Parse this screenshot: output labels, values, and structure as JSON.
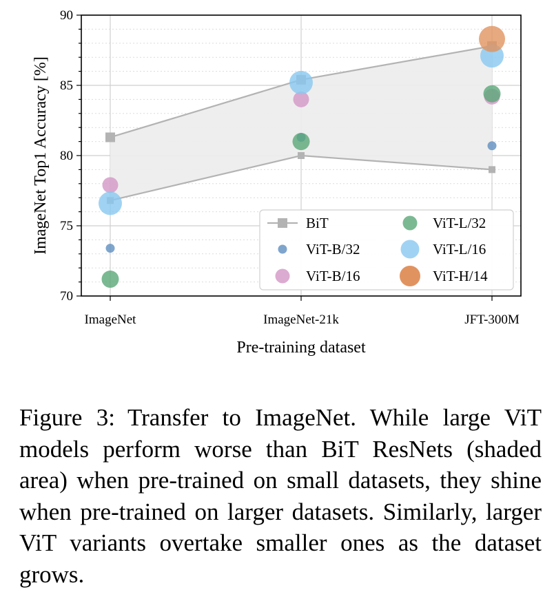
{
  "chart_data": {
    "type": "scatter",
    "title": "",
    "xlabel": "Pre-training dataset",
    "ylabel": "ImageNet Top1 Accuracy [%]",
    "categories": [
      "ImageNet",
      "ImageNet-21k",
      "JFT-300M"
    ],
    "ylim": [
      70,
      90
    ],
    "yticks": [
      70,
      75,
      80,
      85,
      90
    ],
    "grid": true,
    "legend_placement": "lower-right",
    "bit_range": {
      "name": "BiT",
      "upper": [
        81.3,
        85.4,
        87.8
      ],
      "lower": [
        76.8,
        80.0,
        79.0
      ],
      "color": "#b3b3b3",
      "fill": "#ececec"
    },
    "series": [
      {
        "name": "ViT-B/32",
        "values": [
          73.4,
          81.3,
          80.7
        ],
        "color": "#5f8fc0",
        "marker_size": "tiny"
      },
      {
        "name": "ViT-B/16",
        "values": [
          77.9,
          84.0,
          84.2
        ],
        "color": "#d396c6",
        "marker_size": "small"
      },
      {
        "name": "ViT-L/32",
        "values": [
          71.2,
          81.0,
          84.4
        ],
        "color": "#5aa878",
        "marker_size": "medium"
      },
      {
        "name": "ViT-L/16",
        "values": [
          76.6,
          85.2,
          87.1
        ],
        "color": "#88c8f0",
        "marker_size": "large"
      },
      {
        "name": "ViT-H/14",
        "values": [
          null,
          null,
          88.3
        ],
        "color": "#e1935f",
        "marker_size": "xlarge"
      }
    ]
  },
  "caption": {
    "label": "Figure 3:",
    "text": "Transfer to ImageNet.  While large ViT models perform worse than BiT ResNets (shaded area) when pre-trained on small datasets, they shine when pre-trained on larger datasets.  Similarly, larger ViT variants overtake smaller ones as the dataset grows."
  }
}
